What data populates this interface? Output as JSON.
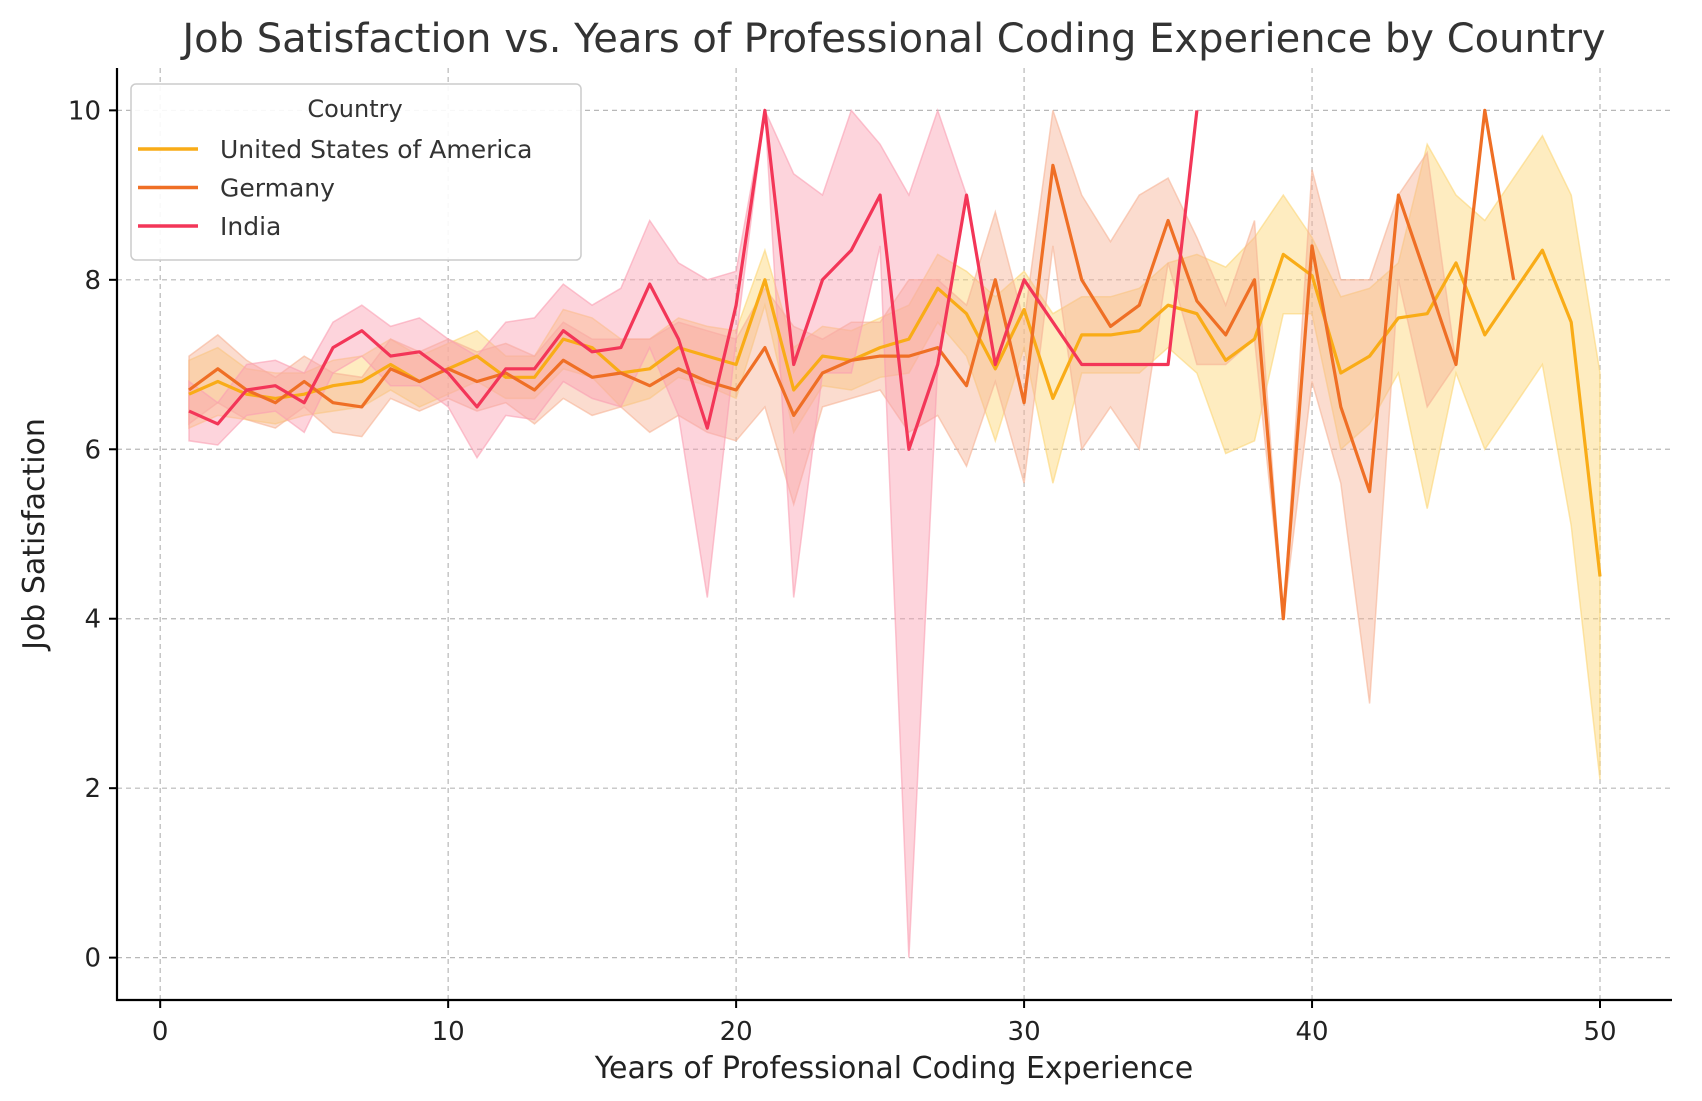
{
  "chart_data": {
    "type": "line",
    "title": "Job Satisfaction vs. Years of Professional Coding Experience by Country",
    "xlabel": "Years of Professional Coding Experience",
    "ylabel": "Job Satisfaction",
    "xlim": [
      -1.5,
      52.5
    ],
    "ylim": [
      -0.5,
      10.5
    ],
    "xticks": [
      0,
      10,
      20,
      30,
      40,
      50
    ],
    "yticks": [
      0,
      2,
      4,
      6,
      8,
      10
    ],
    "grid": true,
    "legend": {
      "title": "Country",
      "position": "top-left"
    },
    "series": [
      {
        "name": "United States of America",
        "color": "#f9ac17",
        "band_color": "#fcd574",
        "x": [
          1,
          2,
          3,
          4,
          5,
          6,
          7,
          8,
          9,
          10,
          11,
          12,
          13,
          14,
          15,
          16,
          17,
          18,
          19,
          20,
          21,
          22,
          23,
          24,
          25,
          26,
          27,
          28,
          29,
          30,
          31,
          32,
          33,
          34,
          35,
          36,
          37,
          38,
          39,
          40,
          41,
          42,
          43,
          44,
          45,
          46,
          47,
          48,
          49,
          50
        ],
        "y": [
          6.65,
          6.8,
          6.65,
          6.6,
          6.65,
          6.75,
          6.8,
          7.0,
          6.8,
          6.95,
          7.1,
          6.85,
          6.85,
          7.3,
          7.2,
          6.9,
          6.95,
          7.2,
          7.1,
          7.0,
          8.0,
          6.7,
          7.1,
          7.05,
          7.2,
          7.3,
          7.9,
          7.6,
          6.95,
          7.65,
          6.6,
          7.35,
          7.35,
          7.4,
          7.7,
          7.6,
          7.05,
          7.3,
          8.3,
          8.05,
          6.9,
          7.1,
          7.55,
          7.6,
          8.2,
          7.35,
          7.85,
          8.35,
          7.5,
          4.5
        ],
        "lower": [
          6.25,
          6.4,
          6.35,
          6.3,
          6.4,
          6.45,
          6.5,
          6.7,
          6.5,
          6.65,
          6.8,
          6.6,
          6.6,
          6.95,
          6.85,
          6.5,
          6.6,
          6.85,
          6.75,
          6.6,
          7.7,
          6.2,
          6.75,
          6.7,
          6.85,
          6.9,
          7.5,
          7.1,
          6.1,
          7.2,
          5.6,
          6.9,
          6.9,
          6.9,
          7.2,
          6.9,
          5.95,
          6.1,
          7.6,
          7.6,
          6.0,
          6.3,
          6.9,
          5.3,
          6.9,
          6.0,
          6.5,
          7.0,
          5.1,
          2.1
        ],
        "upper": [
          7.05,
          7.2,
          6.95,
          6.9,
          6.9,
          7.05,
          7.1,
          7.3,
          7.1,
          7.25,
          7.4,
          7.1,
          7.1,
          7.65,
          7.55,
          7.3,
          7.3,
          7.55,
          7.45,
          7.4,
          8.35,
          7.2,
          7.45,
          7.4,
          7.55,
          7.7,
          8.3,
          8.1,
          7.8,
          8.1,
          7.6,
          7.8,
          7.8,
          7.9,
          8.2,
          8.3,
          8.15,
          8.5,
          9.0,
          8.5,
          7.8,
          7.9,
          8.2,
          9.6,
          9.0,
          8.7,
          9.2,
          9.7,
          9.0,
          6.9
        ]
      },
      {
        "name": "Germany",
        "color": "#ef6f25",
        "band_color": "#f6b294",
        "x": [
          1,
          2,
          3,
          4,
          5,
          6,
          7,
          8,
          9,
          10,
          11,
          12,
          13,
          14,
          15,
          16,
          17,
          18,
          19,
          20,
          21,
          22,
          23,
          24,
          25,
          26,
          27,
          28,
          29,
          30,
          31,
          32,
          33,
          34,
          35,
          36,
          37,
          38,
          39,
          40,
          41,
          42,
          43,
          44,
          45,
          46,
          47
        ],
        "y": [
          6.7,
          6.95,
          6.7,
          6.55,
          6.8,
          6.55,
          6.5,
          6.95,
          6.8,
          6.95,
          6.8,
          6.9,
          6.7,
          7.05,
          6.85,
          6.9,
          6.75,
          6.95,
          6.8,
          6.7,
          7.2,
          6.4,
          6.9,
          7.05,
          7.1,
          7.1,
          7.2,
          6.75,
          8.0,
          6.55,
          9.35,
          8.0,
          7.45,
          7.7,
          8.7,
          7.75,
          7.35,
          8.0,
          4.0,
          8.4,
          6.5,
          5.5,
          9.0,
          8.0,
          7.0,
          10.0,
          8.0
        ],
        "lower": [
          6.3,
          6.55,
          6.35,
          6.25,
          6.5,
          6.2,
          6.15,
          6.6,
          6.45,
          6.6,
          6.45,
          6.55,
          6.3,
          6.6,
          6.4,
          6.5,
          6.2,
          6.4,
          6.2,
          6.1,
          6.5,
          5.35,
          6.5,
          6.6,
          6.7,
          6.2,
          6.4,
          5.8,
          6.8,
          5.6,
          8.4,
          6.0,
          6.5,
          6.0,
          8.2,
          7.0,
          7.0,
          7.3,
          4.0,
          6.8,
          5.6,
          3.0,
          8.0,
          6.5,
          7.0,
          10.0,
          8.0
        ],
        "upper": [
          7.1,
          7.35,
          7.05,
          6.85,
          7.1,
          6.9,
          6.85,
          7.3,
          7.15,
          7.3,
          7.15,
          7.25,
          7.1,
          7.5,
          7.3,
          7.3,
          7.3,
          7.5,
          7.4,
          7.3,
          7.9,
          7.45,
          7.3,
          7.5,
          7.5,
          8.0,
          8.0,
          7.7,
          8.8,
          7.5,
          10.0,
          9.0,
          8.45,
          9.0,
          9.2,
          8.5,
          7.7,
          8.7,
          4.0,
          9.3,
          8.0,
          8.0,
          9.0,
          9.5,
          7.0,
          10.0,
          8.0
        ]
      },
      {
        "name": "India",
        "color": "#f33658",
        "band_color": "#fa9fb2",
        "x": [
          1,
          2,
          3,
          4,
          5,
          6,
          7,
          8,
          9,
          10,
          11,
          12,
          13,
          14,
          15,
          16,
          17,
          18,
          19,
          20,
          21,
          22,
          23,
          24,
          25,
          26,
          27,
          28,
          29,
          30,
          31,
          32,
          33,
          34,
          35,
          36
        ],
        "y": [
          6.45,
          6.3,
          6.7,
          6.75,
          6.55,
          7.2,
          7.4,
          7.1,
          7.15,
          6.9,
          6.5,
          6.95,
          6.95,
          7.4,
          7.15,
          7.2,
          7.95,
          7.3,
          6.25,
          7.7,
          10.0,
          7.0,
          8.0,
          8.35,
          9.0,
          6.0,
          7.0,
          9.0,
          7.0,
          8.0,
          7.5,
          7.0,
          7.0,
          7.0,
          7.0,
          10.0
        ],
        "lower": [
          6.1,
          6.05,
          6.4,
          6.45,
          6.2,
          6.9,
          7.1,
          6.75,
          6.75,
          6.5,
          5.9,
          6.4,
          6.35,
          6.8,
          6.6,
          6.5,
          7.2,
          6.4,
          4.25,
          7.3,
          10.0,
          4.25,
          6.9,
          6.9,
          8.4,
          0.0,
          7.0,
          9.0,
          7.0,
          8.0,
          7.5,
          7.0,
          7.0,
          7.0,
          7.0,
          10.0
        ],
        "upper": [
          6.8,
          6.55,
          7.0,
          7.05,
          6.9,
          7.5,
          7.7,
          7.45,
          7.55,
          7.3,
          7.1,
          7.5,
          7.55,
          7.95,
          7.7,
          7.9,
          8.7,
          8.2,
          8.0,
          8.1,
          10.0,
          9.25,
          9.0,
          10.0,
          9.6,
          9.0,
          10.0,
          9.0,
          7.0,
          8.0,
          7.5,
          7.0,
          7.0,
          7.0,
          7.0,
          10.0
        ]
      }
    ]
  }
}
